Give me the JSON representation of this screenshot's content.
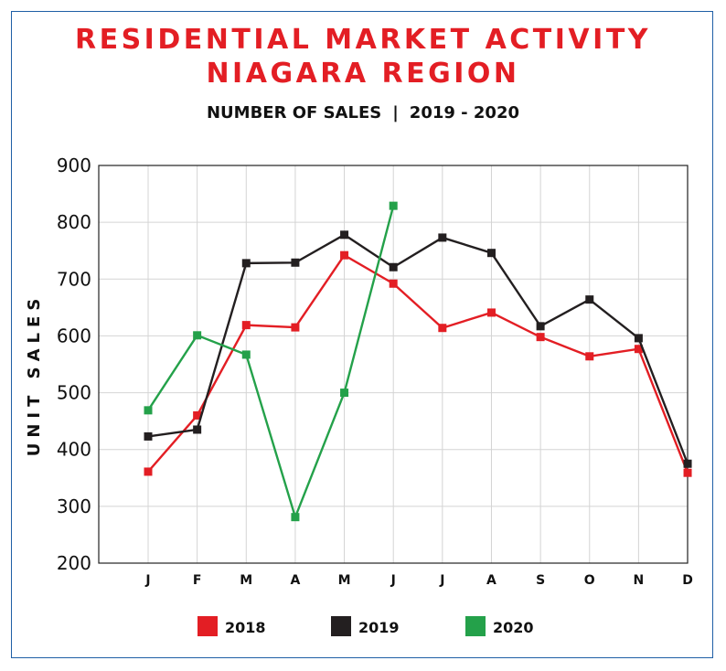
{
  "title": "RESIDENTIAL MARKET ACTIVITY",
  "title2": "NIAGARA REGION",
  "subtitle_left": "NUMBER OF SALES",
  "subtitle_sep": "|",
  "subtitle_right": "2019 - 2020",
  "chart_data": {
    "type": "line",
    "title": "RESIDENTIAL MARKET ACTIVITY NIAGARA REGION",
    "subtitle": "NUMBER OF SALES | 2019 - 2020",
    "xlabel": "",
    "ylabel": "UNIT SALES",
    "categories": [
      "J",
      "F",
      "M",
      "A",
      "M",
      "J",
      "J",
      "A",
      "S",
      "O",
      "N",
      "D"
    ],
    "ylim": [
      200,
      900
    ],
    "yticks": [
      200,
      300,
      400,
      500,
      600,
      700,
      800,
      900
    ],
    "grid": true,
    "legend_position": "bottom",
    "series": [
      {
        "name": "2018",
        "color": "#e31e24",
        "values": [
          361,
          460,
          619,
          615,
          742,
          692,
          614,
          641,
          598,
          564,
          577,
          359
        ]
      },
      {
        "name": "2019",
        "color": "#231f20",
        "values": [
          423,
          435,
          728,
          729,
          778,
          721,
          773,
          746,
          617,
          664,
          596,
          375
        ]
      },
      {
        "name": "2020",
        "color": "#24a14a",
        "values": [
          469,
          601,
          567,
          281,
          500,
          829,
          null,
          null,
          null,
          null,
          null,
          null
        ]
      }
    ]
  }
}
